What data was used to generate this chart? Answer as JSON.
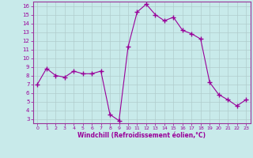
{
  "x": [
    0,
    1,
    2,
    3,
    4,
    5,
    6,
    7,
    8,
    9,
    10,
    11,
    12,
    13,
    14,
    15,
    16,
    17,
    18,
    19,
    20,
    21,
    22,
    23
  ],
  "y": [
    7.0,
    8.8,
    8.0,
    7.8,
    8.5,
    8.2,
    8.2,
    8.5,
    3.5,
    2.8,
    11.3,
    15.3,
    16.2,
    15.0,
    14.3,
    14.7,
    13.2,
    12.8,
    12.2,
    7.2,
    5.8,
    5.2,
    4.5,
    5.2
  ],
  "line_color": "#990099",
  "marker": "+",
  "marker_size": 4,
  "bg_color": "#c8eaea",
  "grid_color": "#b0cccc",
  "xlabel": "Windchill (Refroidissement éolien,°C)",
  "ylim": [
    2.5,
    16.5
  ],
  "xlim": [
    -0.5,
    23.5
  ],
  "yticks": [
    3,
    4,
    5,
    6,
    7,
    8,
    9,
    10,
    11,
    12,
    13,
    14,
    15,
    16
  ],
  "xticks": [
    0,
    1,
    2,
    3,
    4,
    5,
    6,
    7,
    8,
    9,
    10,
    11,
    12,
    13,
    14,
    15,
    16,
    17,
    18,
    19,
    20,
    21,
    22,
    23
  ],
  "tick_color": "#990099",
  "label_color": "#990099",
  "spine_color": "#993399"
}
